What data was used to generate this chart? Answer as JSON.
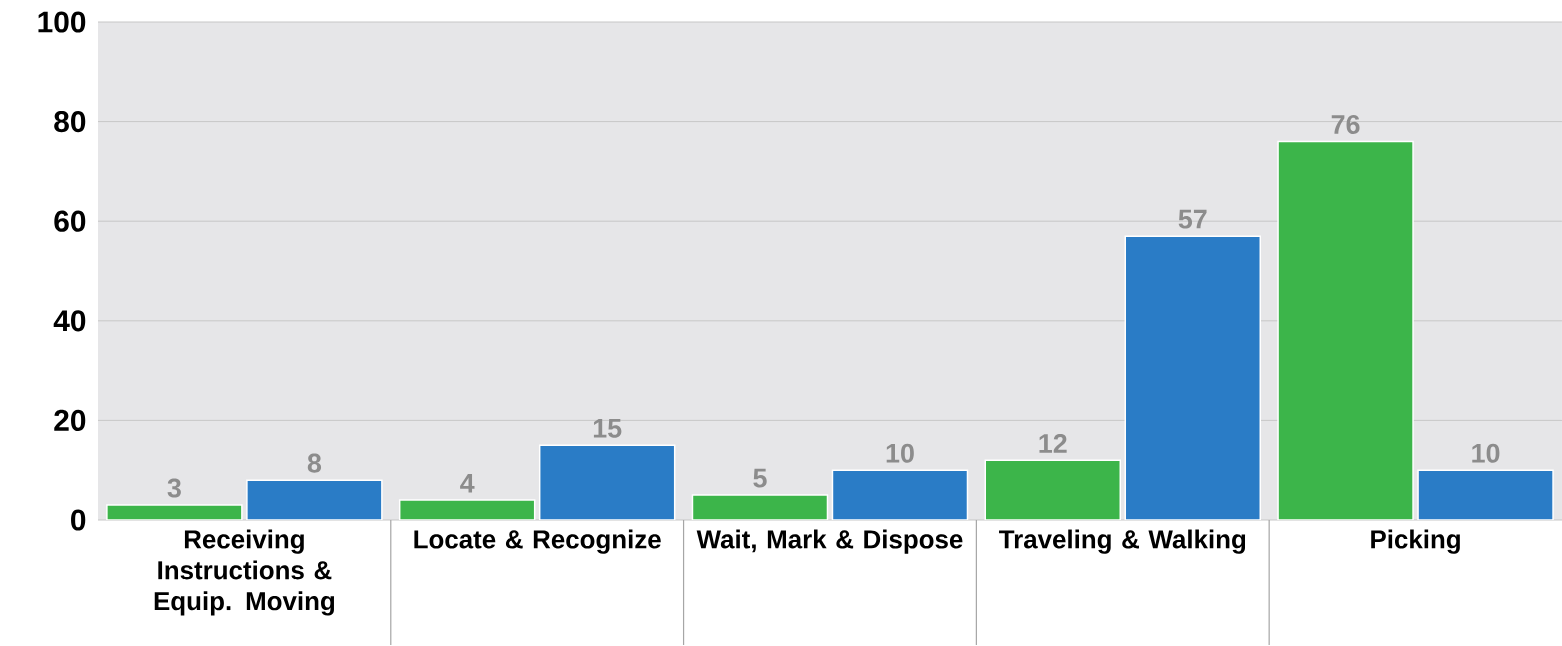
{
  "chart_data": {
    "type": "bar",
    "categories": [
      "Receiving Instructions & Equip. Moving",
      "Locate & Recognize",
      "Wait, Mark & Dispose",
      "Traveling & Walking",
      "Picking"
    ],
    "series": [
      {
        "color": "#3cb54a",
        "values": [
          3,
          4,
          5,
          12,
          76
        ]
      },
      {
        "color": "#2a7cc6",
        "values": [
          8,
          15,
          10,
          57,
          10
        ]
      }
    ],
    "ylim": [
      0,
      100
    ],
    "yticks": [
      0,
      20,
      40,
      60,
      80,
      100
    ],
    "grid": "y",
    "data_labels": true
  }
}
